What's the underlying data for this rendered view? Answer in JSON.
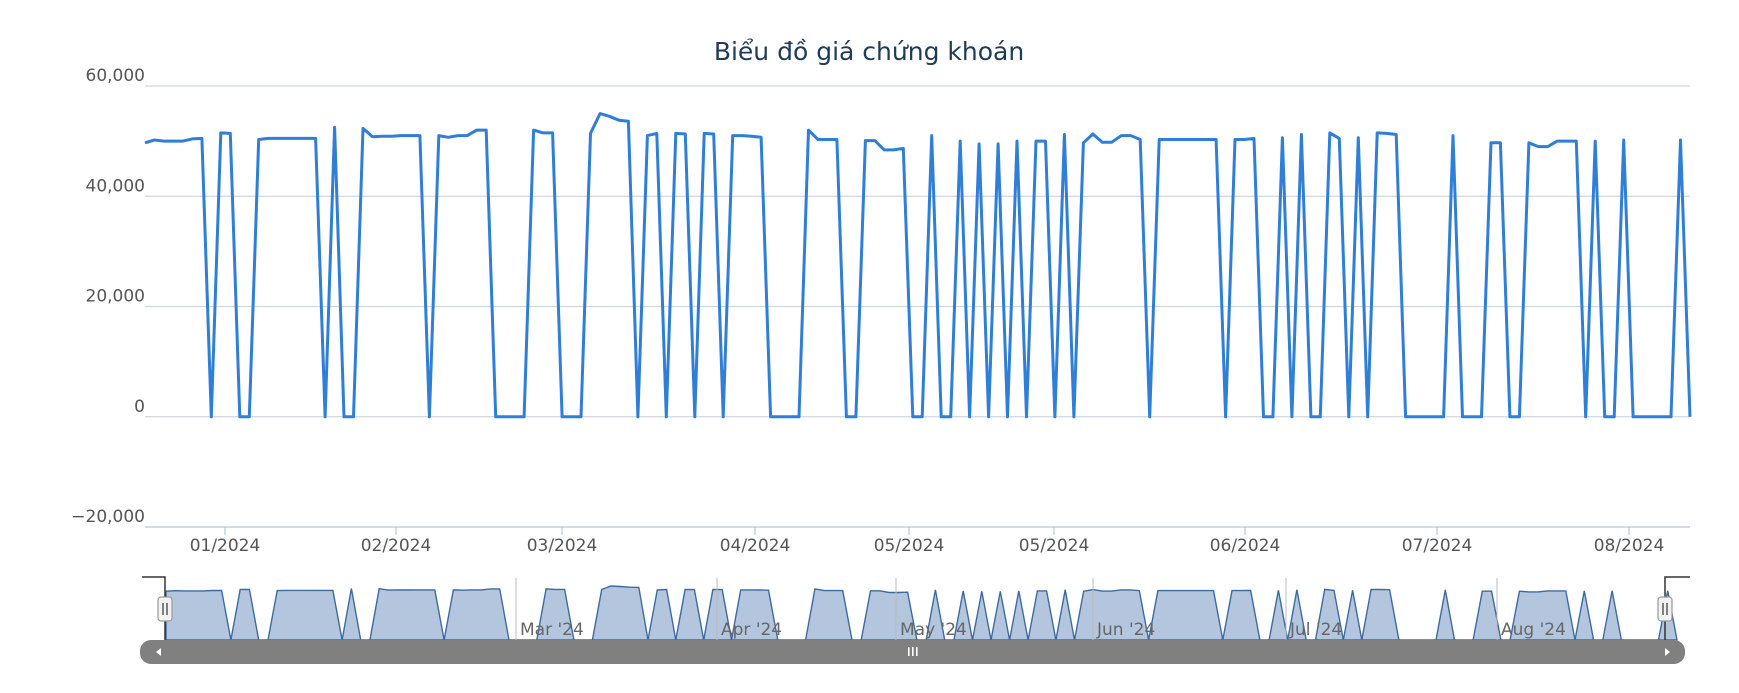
{
  "chart_data": {
    "type": "line",
    "title": "Biểu đồ giá chứng khoán",
    "ylim": [
      -20000,
      60000
    ],
    "y_ticks": [
      "60,000",
      "40,000",
      "20,000",
      "0",
      "−20,000"
    ],
    "y_tick_values": [
      60000,
      40000,
      20000,
      0,
      -20000
    ],
    "x_ticks": [
      "01/2024",
      "02/2024",
      "03/2024",
      "04/2024",
      "05/2024",
      "05/2024",
      "06/2024",
      "07/2024",
      "08/2024"
    ],
    "navigator_labels": [
      "Mar '24",
      "Apr '24",
      "May '24",
      "Jun '24",
      "Jul '24",
      "Aug '24"
    ],
    "grid": true,
    "legend": "none",
    "series": [
      {
        "color": "#2f7ed8",
        "values": [
          49700,
          50200,
          50000,
          50000,
          50000,
          50400,
          50500,
          0,
          51500,
          51400,
          0,
          0,
          50300,
          50500,
          50500,
          50500,
          50500,
          50500,
          50500,
          0,
          52500,
          0,
          0,
          52300,
          50800,
          50900,
          50900,
          51000,
          51000,
          51000,
          0,
          51000,
          50700,
          51000,
          51000,
          52000,
          52000,
          0,
          0,
          0,
          0,
          52000,
          51500,
          51500,
          0,
          0,
          0,
          51400,
          55000,
          54500,
          53800,
          53600,
          0,
          51000,
          51400,
          0,
          51400,
          51300,
          0,
          51400,
          51300,
          0,
          51000,
          51000,
          50900,
          50700,
          0,
          0,
          0,
          0,
          52000,
          50300,
          50300,
          50300,
          0,
          0,
          50100,
          50100,
          48400,
          48400,
          48700,
          0,
          0,
          51000,
          0,
          0,
          50000,
          0,
          49500,
          0,
          49500,
          0,
          50000,
          0,
          50000,
          50000,
          0,
          51200,
          0,
          49700,
          51300,
          49800,
          49800,
          51000,
          51000,
          50300,
          0,
          50300,
          50300,
          50300,
          50300,
          50300,
          50300,
          50300,
          0,
          50300,
          50300,
          50500,
          0,
          0,
          50600,
          0,
          51200,
          0,
          0,
          51500,
          50500,
          0,
          50600,
          0,
          51500,
          51400,
          51200,
          0,
          0,
          0,
          0,
          0,
          51000,
          0,
          0,
          0,
          49700,
          49700,
          0,
          0,
          49700,
          49000,
          49000,
          50000,
          50000,
          50000,
          0,
          50000,
          0,
          0,
          50200,
          0,
          0,
          0,
          0,
          0,
          50200,
          0
        ]
      }
    ]
  }
}
